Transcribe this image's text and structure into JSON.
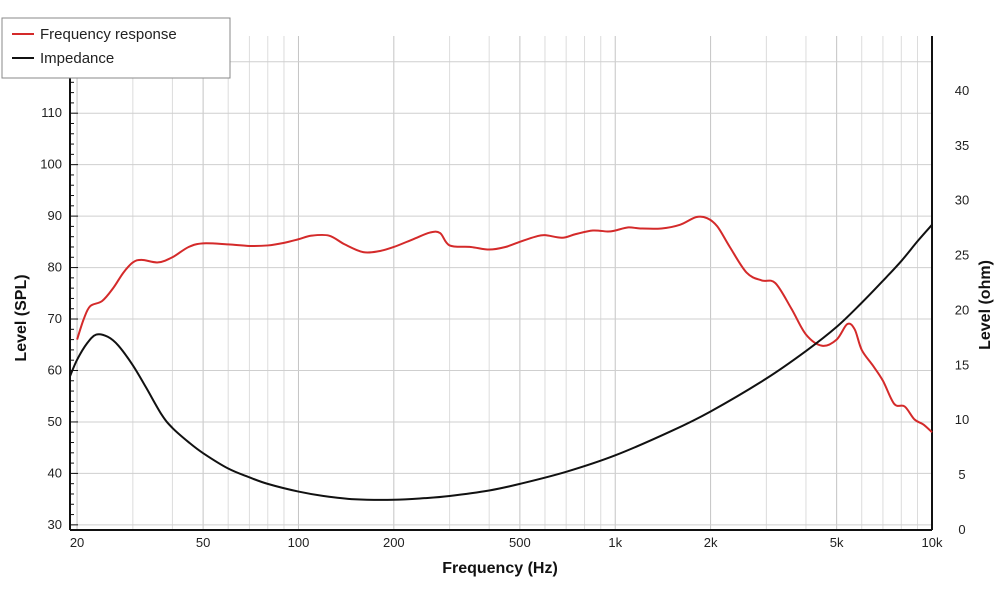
{
  "chart_data": {
    "type": "line",
    "title": "",
    "xlabel": "Frequency (Hz)",
    "ylabel_left": "Level (SPL)",
    "ylabel_right": "Level (ohm)",
    "x_scale": "log",
    "xlim": [
      19,
      10000
    ],
    "ylim_left": [
      29,
      125
    ],
    "ylim_right": [
      0,
      45
    ],
    "grid": true,
    "legend_position": "top-left",
    "x_ticks": [
      {
        "value": 20,
        "label": "20"
      },
      {
        "value": 50,
        "label": "50"
      },
      {
        "value": 100,
        "label": "100"
      },
      {
        "value": 200,
        "label": "200"
      },
      {
        "value": 500,
        "label": "500"
      },
      {
        "value": 1000,
        "label": "1k"
      },
      {
        "value": 2000,
        "label": "2k"
      },
      {
        "value": 5000,
        "label": "5k"
      },
      {
        "value": 10000,
        "label": "10k"
      }
    ],
    "y_ticks_left": [
      30,
      40,
      50,
      60,
      70,
      80,
      90,
      100,
      110,
      120
    ],
    "y_ticks_right": [
      0,
      5,
      10,
      15,
      20,
      25,
      30,
      35,
      40
    ],
    "series": [
      {
        "name": "Frequency response",
        "color": "#d42a2a",
        "axis": "left",
        "points": [
          [
            20,
            66
          ],
          [
            21,
            70
          ],
          [
            22,
            72.5
          ],
          [
            24,
            73.5
          ],
          [
            26,
            76
          ],
          [
            28,
            79
          ],
          [
            30,
            81
          ],
          [
            32,
            81.5
          ],
          [
            36,
            81
          ],
          [
            40,
            82
          ],
          [
            45,
            84
          ],
          [
            50,
            84.7
          ],
          [
            60,
            84.5
          ],
          [
            70,
            84.2
          ],
          [
            80,
            84.3
          ],
          [
            90,
            84.8
          ],
          [
            100,
            85.5
          ],
          [
            110,
            86.2
          ],
          [
            125,
            86.2
          ],
          [
            140,
            84.5
          ],
          [
            160,
            83
          ],
          [
            180,
            83.2
          ],
          [
            200,
            84
          ],
          [
            230,
            85.5
          ],
          [
            260,
            86.8
          ],
          [
            280,
            86.7
          ],
          [
            300,
            84.3
          ],
          [
            350,
            84
          ],
          [
            400,
            83.5
          ],
          [
            450,
            84
          ],
          [
            500,
            85
          ],
          [
            560,
            86
          ],
          [
            600,
            86.3
          ],
          [
            680,
            85.8
          ],
          [
            750,
            86.5
          ],
          [
            850,
            87.2
          ],
          [
            950,
            87
          ],
          [
            1000,
            87.2
          ],
          [
            1100,
            87.8
          ],
          [
            1200,
            87.6
          ],
          [
            1400,
            87.6
          ],
          [
            1600,
            88.3
          ],
          [
            1800,
            89.8
          ],
          [
            1950,
            89.6
          ],
          [
            2100,
            88
          ],
          [
            2300,
            84
          ],
          [
            2600,
            79
          ],
          [
            2900,
            77.5
          ],
          [
            3200,
            77
          ],
          [
            3600,
            72
          ],
          [
            4000,
            67
          ],
          [
            4500,
            64.8
          ],
          [
            5000,
            66
          ],
          [
            5400,
            69
          ],
          [
            5700,
            68
          ],
          [
            6000,
            64
          ],
          [
            6500,
            61
          ],
          [
            7000,
            58
          ],
          [
            7600,
            53.5
          ],
          [
            8200,
            53
          ],
          [
            8800,
            50.5
          ],
          [
            9400,
            49.5
          ],
          [
            10000,
            48
          ]
        ]
      },
      {
        "name": "Impedance",
        "color": "#111111",
        "axis": "right",
        "points": [
          [
            19,
            14
          ],
          [
            20,
            15.5
          ],
          [
            21.5,
            17
          ],
          [
            23,
            17.8
          ],
          [
            25,
            17.6
          ],
          [
            27,
            16.8
          ],
          [
            30,
            15
          ],
          [
            33,
            13
          ],
          [
            37,
            10.5
          ],
          [
            40,
            9.3
          ],
          [
            45,
            8
          ],
          [
            50,
            7
          ],
          [
            60,
            5.6
          ],
          [
            70,
            4.8
          ],
          [
            80,
            4.2
          ],
          [
            100,
            3.5
          ],
          [
            120,
            3.1
          ],
          [
            150,
            2.8
          ],
          [
            200,
            2.75
          ],
          [
            250,
            2.9
          ],
          [
            300,
            3.1
          ],
          [
            400,
            3.6
          ],
          [
            500,
            4.2
          ],
          [
            700,
            5.3
          ],
          [
            1000,
            6.8
          ],
          [
            1500,
            9
          ],
          [
            2000,
            10.8
          ],
          [
            3000,
            13.8
          ],
          [
            4000,
            16.3
          ],
          [
            5000,
            18.5
          ],
          [
            6000,
            20.7
          ],
          [
            7000,
            22.7
          ],
          [
            8000,
            24.5
          ],
          [
            9000,
            26.3
          ],
          [
            10000,
            27.8
          ]
        ]
      }
    ]
  }
}
